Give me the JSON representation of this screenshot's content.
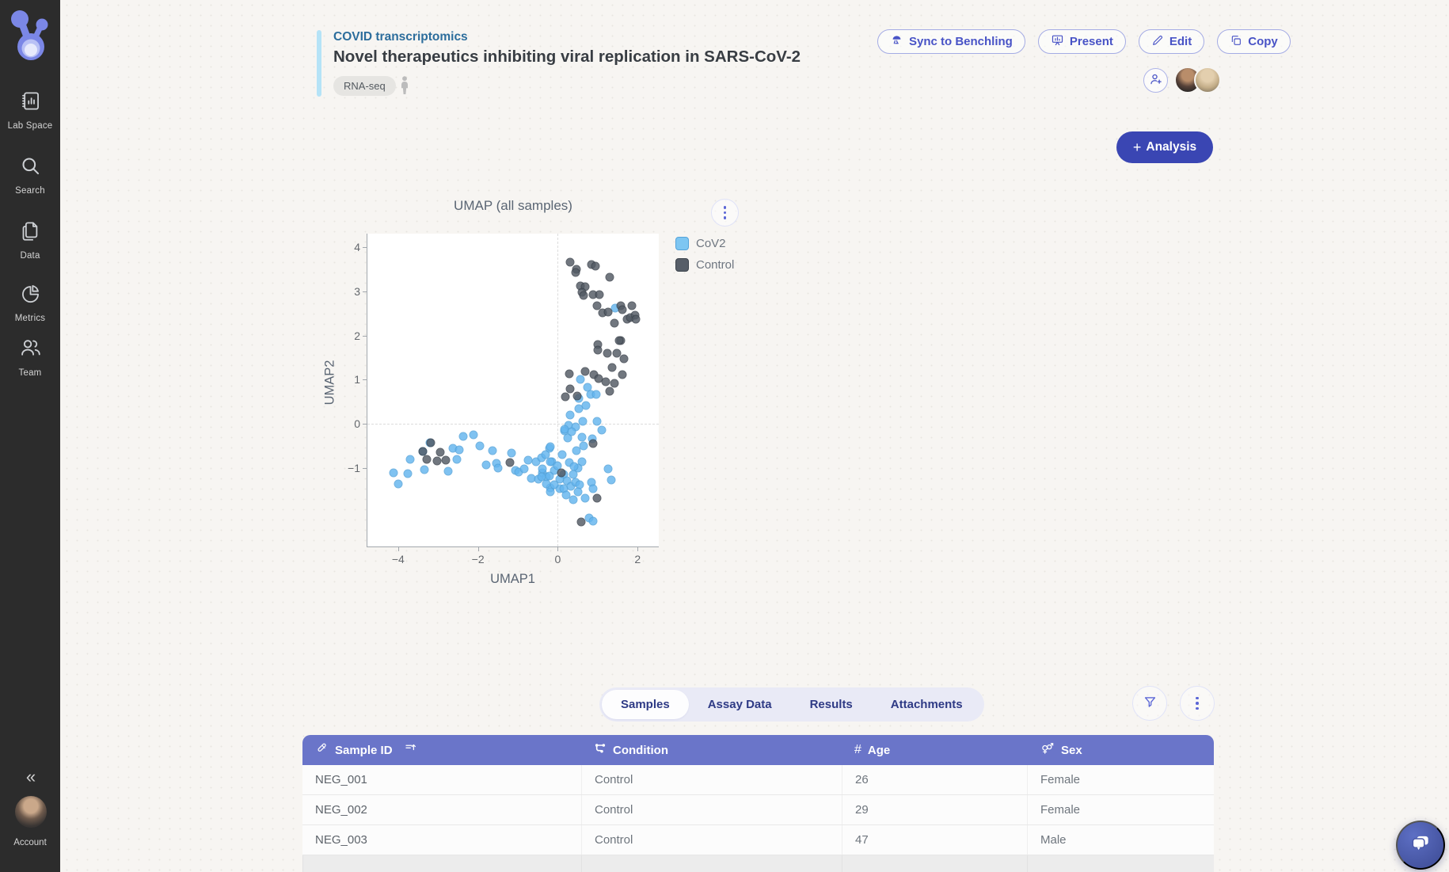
{
  "sidebar": {
    "items": [
      {
        "label": "Lab Space",
        "icon": "lab-notebook-icon"
      },
      {
        "label": "Search",
        "icon": "search-icon"
      },
      {
        "label": "Data",
        "icon": "documents-icon"
      },
      {
        "label": "Metrics",
        "icon": "pie-chart-icon"
      },
      {
        "label": "Team",
        "icon": "people-icon"
      }
    ],
    "collapse_glyph": "«",
    "account_label": "Account"
  },
  "header": {
    "breadcrumb": "COVID transcriptomics",
    "title": "Novel therapeutics inhibiting viral replication in SARS-CoV-2",
    "tag": "RNA-seq",
    "buttons": {
      "sync": "Sync to Benchling",
      "present": "Present",
      "edit": "Edit",
      "copy": "Copy"
    },
    "analysis_plus": "+",
    "analysis_label": "Analysis"
  },
  "chart_data": {
    "type": "scatter",
    "title": "UMAP (all samples)",
    "xlabel": "UMAP1",
    "ylabel": "UMAP2",
    "xlim": [
      -4.77,
      2.53
    ],
    "ylim": [
      -2.77,
      4.3
    ],
    "xticks": [
      -4,
      -2,
      0,
      2
    ],
    "yticks": [
      -1,
      0,
      1,
      2,
      3,
      4
    ],
    "grid": "zero-lines-dashed",
    "legend_position": "right",
    "series": [
      {
        "name": "CoV2",
        "color": "#64b5ef",
        "stroke": "#54a3da",
        "swatch": "#7ec6f2",
        "points": [
          [
            -4.12,
            -1.11
          ],
          [
            -3.99,
            -1.35
          ],
          [
            -3.75,
            -1.13
          ],
          [
            -3.69,
            -0.8
          ],
          [
            -3.34,
            -1.04
          ],
          [
            -3.38,
            -0.62
          ],
          [
            -3.21,
            -0.42
          ],
          [
            -2.74,
            -1.07
          ],
          [
            -2.63,
            -0.55
          ],
          [
            -2.46,
            -0.58
          ],
          [
            -2.36,
            -0.28
          ],
          [
            -2.11,
            -0.24
          ],
          [
            -1.96,
            -0.49
          ],
          [
            -2.53,
            -0.8
          ],
          [
            -1.8,
            -0.92
          ],
          [
            -1.63,
            -0.61
          ],
          [
            -1.53,
            -0.89
          ],
          [
            -1.49,
            -0.99
          ],
          [
            -1.15,
            -0.66
          ],
          [
            -1.07,
            -1.05
          ],
          [
            -0.98,
            -1.08
          ],
          [
            -0.84,
            -1.01
          ],
          [
            -0.74,
            -0.82
          ],
          [
            -0.67,
            -1.23
          ],
          [
            -0.54,
            -0.86
          ],
          [
            -0.41,
            -0.76
          ],
          [
            -0.49,
            -1.25
          ],
          [
            -0.38,
            -1.11
          ],
          [
            -0.29,
            -1.19
          ],
          [
            -0.2,
            -0.55
          ],
          [
            -0.15,
            -0.85
          ],
          [
            -0.08,
            -1.05
          ],
          [
            -0.18,
            -1.44
          ],
          [
            0.05,
            -1.47
          ],
          [
            0.15,
            -1.14
          ],
          [
            0.17,
            -0.16
          ],
          [
            0.25,
            -0.31
          ],
          [
            -0.18,
            -0.52
          ],
          [
            -0.31,
            -0.7
          ],
          [
            -0.18,
            -0.85
          ],
          [
            -0.38,
            -1.02
          ],
          [
            -0.41,
            -1.2
          ],
          [
            -0.21,
            -1.17
          ],
          [
            -0.29,
            -1.35
          ],
          [
            -0.08,
            -1.38
          ],
          [
            -0.18,
            -1.53
          ],
          [
            0.65,
            -0.49
          ],
          [
            0.61,
            -0.85
          ],
          [
            0.51,
            -1.0
          ],
          [
            0.38,
            -1.14
          ],
          [
            0.22,
            -1.29
          ],
          [
            0.15,
            -1.47
          ],
          [
            0.32,
            -1.41
          ],
          [
            0.45,
            -1.32
          ],
          [
            0.55,
            -1.38
          ],
          [
            0.51,
            -1.53
          ],
          [
            0.38,
            -1.71
          ],
          [
            0.68,
            -1.68
          ],
          [
            0.85,
            -1.32
          ],
          [
            0.88,
            -1.47
          ],
          [
            1.27,
            -1.02
          ],
          [
            1.34,
            -1.26
          ],
          [
            0.78,
            -2.13
          ],
          [
            0.88,
            -2.19
          ],
          [
            0.56,
            1.0
          ],
          [
            0.75,
            0.82
          ],
          [
            0.83,
            0.67
          ],
          [
            0.96,
            0.66
          ],
          [
            0.53,
            0.58
          ],
          [
            0.71,
            0.41
          ],
          [
            0.52,
            0.34
          ],
          [
            0.26,
            -0.04
          ],
          [
            0.44,
            -0.07
          ],
          [
            0.63,
            0.05
          ],
          [
            0.98,
            0.06
          ],
          [
            1.11,
            -0.13
          ],
          [
            0.17,
            -0.12
          ],
          [
            0.34,
            -0.18
          ],
          [
            0.6,
            -0.3
          ],
          [
            0.86,
            -0.34
          ],
          [
            1.44,
            2.62
          ],
          [
            0.3,
            0.2
          ],
          [
            0.1,
            -0.7
          ],
          [
            0.0,
            -0.95
          ],
          [
            0.47,
            -0.6
          ],
          [
            0.28,
            -0.88
          ],
          [
            0.4,
            -0.97
          ],
          [
            0.2,
            -1.6
          ],
          [
            0.05,
            -1.25
          ]
        ]
      },
      {
        "name": "Control",
        "color": "#525a64",
        "stroke": "#3c434c",
        "swatch": "#575e68",
        "points": [
          [
            0.3,
            3.65
          ],
          [
            0.46,
            3.5
          ],
          [
            0.44,
            3.42
          ],
          [
            0.85,
            3.6
          ],
          [
            0.94,
            3.57
          ],
          [
            1.31,
            3.32
          ],
          [
            0.56,
            3.12
          ],
          [
            0.69,
            3.1
          ],
          [
            0.6,
            2.98
          ],
          [
            0.65,
            2.91
          ],
          [
            0.88,
            2.93
          ],
          [
            1.05,
            2.92
          ],
          [
            0.98,
            2.67
          ],
          [
            1.13,
            2.51
          ],
          [
            1.27,
            2.52
          ],
          [
            1.57,
            2.68
          ],
          [
            1.85,
            2.67
          ],
          [
            1.62,
            2.59
          ],
          [
            1.74,
            2.37
          ],
          [
            1.82,
            2.4
          ],
          [
            1.94,
            2.45
          ],
          [
            1.96,
            2.37
          ],
          [
            1.41,
            2.28
          ],
          [
            1.57,
            1.89
          ],
          [
            1.01,
            1.79
          ],
          [
            1.54,
            1.88
          ],
          [
            1.0,
            1.67
          ],
          [
            1.24,
            1.59
          ],
          [
            1.47,
            1.59
          ],
          [
            1.66,
            1.48
          ],
          [
            1.35,
            1.27
          ],
          [
            1.62,
            1.12
          ],
          [
            0.28,
            1.14
          ],
          [
            0.69,
            1.18
          ],
          [
            0.91,
            1.12
          ],
          [
            1.02,
            1.03
          ],
          [
            1.21,
            0.95
          ],
          [
            1.41,
            0.91
          ],
          [
            1.31,
            0.73
          ],
          [
            0.3,
            0.8
          ],
          [
            0.18,
            0.61
          ],
          [
            0.49,
            0.63
          ],
          [
            -3.19,
            -0.42
          ],
          [
            -3.39,
            -0.62
          ],
          [
            -3.28,
            -0.8
          ],
          [
            -3.03,
            -0.83
          ],
          [
            -2.95,
            -0.64
          ],
          [
            -2.81,
            -0.82
          ],
          [
            -1.2,
            -0.88
          ],
          [
            0.09,
            -1.1
          ],
          [
            0.98,
            -1.67
          ],
          [
            0.58,
            -2.21
          ],
          [
            0.88,
            -0.45
          ]
        ]
      }
    ]
  },
  "tabs": {
    "items": [
      "Samples",
      "Assay Data",
      "Results",
      "Attachments"
    ],
    "active": "Samples"
  },
  "table": {
    "columns": [
      {
        "label": "Sample ID",
        "icon": "test-tube-icon",
        "extra_icon": "sort-ascending-icon"
      },
      {
        "label": "Condition",
        "icon": "category-icon"
      },
      {
        "label": "Age",
        "icon": "number-icon",
        "glyph": "#"
      },
      {
        "label": "Sex",
        "icon": "gender-icon"
      }
    ],
    "rows": [
      [
        "NEG_001",
        "Control",
        "26",
        "Female"
      ],
      [
        "NEG_002",
        "Control",
        "29",
        "Female"
      ],
      [
        "NEG_003",
        "Control",
        "47",
        "Male"
      ]
    ]
  },
  "theme": {
    "sidebar_bg": "#2c2c2c",
    "accent_bar": "#b5e3f7",
    "breadcrumb_blue": "#2c6d9c",
    "button_indigo": "#4853c6",
    "primary_button_bg": "#3a46b3",
    "table_header_bg": "#6a75c9",
    "tabs_bg": "#e9eaf6",
    "page_bg": "#f7f5f2"
  }
}
